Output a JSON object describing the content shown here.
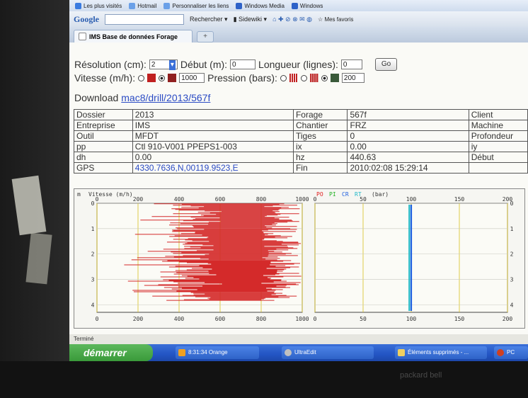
{
  "favorites_bar": {
    "items": [
      "Les plus visités",
      "Hotmail",
      "Personnaliser les liens",
      "Windows Media",
      "Windows"
    ]
  },
  "google_toolbar": {
    "logo": "Google",
    "search_label": "Rechercher",
    "sidewiki": "Sidewiki",
    "favoris": "Mes favoris"
  },
  "tabs": [
    {
      "label": "IMS Base de données Forage"
    }
  ],
  "form": {
    "resolution_label": "Résolution (cm):",
    "resolution_value": "2",
    "debut_label": "Début (m):",
    "debut_value": "0",
    "longueur_label": "Longueur (lignes):",
    "longueur_value": "0",
    "go_label": "Go",
    "vitesse_label": "Vitesse (m/h):",
    "vitesse_value": "1000",
    "pression_label": "Pression (bars):",
    "pression_value": "200",
    "download_label": "Download",
    "download_link": "mac8/drill/2013/567f"
  },
  "info": {
    "rows": [
      [
        "Dossier",
        "2013",
        "Forage",
        "567f",
        "Client"
      ],
      [
        "Entreprise",
        "IMS",
        "Chantier",
        "FRZ",
        "Machine"
      ],
      [
        "Outil",
        "MFDT",
        "Tiges",
        "0",
        "Profondeur"
      ],
      [
        "pp",
        "Ctl 910-V001 PPEPS1-003",
        "ix",
        "0.00",
        "iy"
      ],
      [
        "dh",
        "0.00",
        "hz",
        "440.63",
        "Début"
      ],
      [
        "GPS",
        "4330.7636,N,00119.9523,E",
        "Fin",
        "2010:02:08 15:29:14",
        ""
      ]
    ]
  },
  "chart_data": [
    {
      "type": "line",
      "title": "Vitesse (m/h)",
      "y_unit_label": "m",
      "x_ticks": [
        "0",
        "200",
        "400",
        "600",
        "800",
        "1000"
      ],
      "y_ticks": [
        "0",
        "1",
        "2",
        "3",
        "4"
      ],
      "xlim": [
        0,
        1000
      ],
      "ylim": [
        0,
        4.3
      ],
      "series": [
        {
          "color": "#d42a2a"
        }
      ],
      "grid": true
    },
    {
      "type": "line",
      "title": "(bar)",
      "legend": [
        {
          "name": "PO",
          "color": "#e02020"
        },
        {
          "name": "PI",
          "color": "#20b020"
        },
        {
          "name": "CR",
          "color": "#2060e0"
        },
        {
          "name": "RT",
          "color": "#20b8c8"
        }
      ],
      "x_ticks": [
        "0",
        "50",
        "100",
        "150",
        "200"
      ],
      "y_ticks": [
        "0",
        "1",
        "2",
        "3",
        "4"
      ],
      "xlim": [
        0,
        200
      ],
      "ylim": [
        0,
        4.3
      ],
      "series": [
        {
          "name": "RT",
          "color": "#20b8c8",
          "x_center": 98
        },
        {
          "name": "CR",
          "color": "#2060e0",
          "x_center": 100
        }
      ],
      "grid": true
    }
  ],
  "status": {
    "text": "Terminé"
  },
  "taskbar": {
    "start_label": "démarrer",
    "tasks": [
      {
        "label": "8:31:34 Orange",
        "color": "#f0a020"
      },
      {
        "label": "UltraEdit",
        "color": "#c0c0c0"
      },
      {
        "label": "Éléments supprimés - ...",
        "color": "#f0d060"
      },
      {
        "label": "PC",
        "color": "#d04020"
      }
    ]
  },
  "bezel": {
    "brand": "packard bell"
  }
}
